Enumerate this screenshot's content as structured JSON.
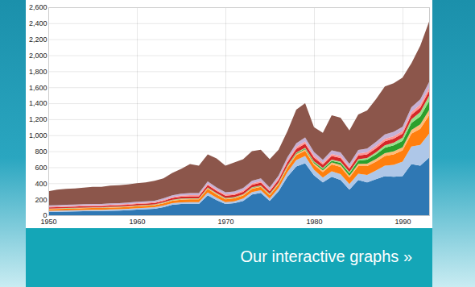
{
  "chart_data": {
    "type": "area",
    "stacked": true,
    "grid": true,
    "x": [
      1950,
      1951,
      1952,
      1953,
      1954,
      1955,
      1956,
      1957,
      1958,
      1959,
      1960,
      1961,
      1962,
      1963,
      1964,
      1965,
      1966,
      1967,
      1968,
      1969,
      1970,
      1971,
      1972,
      1973,
      1974,
      1975,
      1976,
      1977,
      1978,
      1979,
      1980,
      1981,
      1982,
      1983,
      1984,
      1985,
      1986,
      1987,
      1988,
      1989,
      1990,
      1991,
      1992,
      1993
    ],
    "xlim": [
      1950,
      1993
    ],
    "xticks": [
      1950,
      1960,
      1970,
      1980,
      1990
    ],
    "ylim": [
      0,
      2600
    ],
    "yticks": [
      0,
      200,
      400,
      600,
      800,
      {
        "value": 1000,
        "label": "1,000"
      },
      {
        "value": 1200,
        "label": "1,200"
      },
      {
        "value": 1400,
        "label": "1,400"
      },
      {
        "value": 1600,
        "label": "1,600"
      },
      {
        "value": 1800,
        "label": "1,800"
      },
      {
        "value": 2000,
        "label": "2,000"
      },
      {
        "value": 2200,
        "label": "2,200"
      },
      {
        "value": 2400,
        "label": "2,400"
      },
      {
        "value": 2600,
        "label": "2,600"
      }
    ],
    "series": [
      {
        "color": "#2f78b4",
        "values": [
          40,
          42,
          45,
          48,
          50,
          52,
          52,
          55,
          58,
          62,
          70,
          75,
          80,
          100,
          130,
          140,
          140,
          140,
          250,
          190,
          140,
          150,
          180,
          260,
          280,
          180,
          300,
          480,
          610,
          650,
          500,
          410,
          480,
          440,
          320,
          440,
          410,
          450,
          490,
          480,
          490,
          640,
          620,
          720
        ]
      },
      {
        "color": "#aec7e8",
        "values": [
          15,
          15,
          15,
          15,
          16,
          16,
          16,
          17,
          17,
          18,
          18,
          18,
          20,
          20,
          22,
          22,
          24,
          24,
          35,
          30,
          25,
          25,
          28,
          30,
          32,
          30,
          40,
          60,
          80,
          90,
          70,
          60,
          70,
          75,
          70,
          80,
          95,
          110,
          130,
          150,
          180,
          220,
          260,
          300
        ]
      },
      {
        "color": "#ff7f0e",
        "values": [
          20,
          20,
          21,
          21,
          22,
          22,
          22,
          23,
          23,
          24,
          25,
          25,
          26,
          28,
          30,
          32,
          34,
          34,
          45,
          40,
          35,
          36,
          38,
          40,
          42,
          40,
          45,
          55,
          60,
          65,
          60,
          70,
          85,
          90,
          80,
          95,
          110,
          110,
          120,
          130,
          140,
          160,
          200,
          230
        ]
      },
      {
        "color": "#ffbb78",
        "values": [
          5,
          5,
          5,
          5,
          5,
          5,
          5,
          6,
          6,
          6,
          6,
          6,
          6,
          7,
          7,
          8,
          8,
          8,
          10,
          9,
          9,
          9,
          10,
          10,
          11,
          10,
          12,
          14,
          16,
          18,
          20,
          22,
          24,
          25,
          25,
          28,
          30,
          32,
          35,
          38,
          40,
          45,
          55,
          65
        ]
      },
      {
        "color": "#2ca02c",
        "values": [
          2,
          2,
          2,
          2,
          2,
          2,
          2,
          2,
          2,
          2,
          2,
          2,
          2,
          3,
          3,
          3,
          3,
          3,
          4,
          4,
          4,
          4,
          4,
          5,
          5,
          5,
          6,
          8,
          10,
          12,
          15,
          18,
          22,
          25,
          30,
          40,
          50,
          60,
          70,
          75,
          80,
          90,
          100,
          110
        ]
      },
      {
        "color": "#98df8a",
        "values": [
          2,
          2,
          2,
          2,
          2,
          2,
          2,
          2,
          2,
          2,
          2,
          2,
          2,
          2,
          2,
          3,
          3,
          3,
          3,
          3,
          3,
          3,
          3,
          4,
          4,
          4,
          5,
          6,
          8,
          10,
          10,
          12,
          14,
          15,
          16,
          18,
          20,
          25,
          30,
          35,
          40,
          45,
          55,
          70
        ]
      },
      {
        "color": "#d62728",
        "values": [
          15,
          15,
          15,
          15,
          16,
          16,
          16,
          17,
          17,
          17,
          18,
          18,
          18,
          20,
          22,
          24,
          25,
          25,
          30,
          28,
          28,
          28,
          30,
          32,
          34,
          32,
          35,
          40,
          45,
          50,
          45,
          40,
          45,
          45,
          40,
          45,
          45,
          50,
          50,
          50,
          50,
          55,
          55,
          60
        ]
      },
      {
        "color": "#ff9896",
        "values": [
          10,
          10,
          10,
          10,
          10,
          10,
          10,
          10,
          10,
          10,
          10,
          10,
          10,
          12,
          12,
          14,
          14,
          14,
          16,
          15,
          15,
          15,
          16,
          18,
          18,
          16,
          18,
          22,
          25,
          28,
          25,
          22,
          25,
          25,
          22,
          25,
          28,
          30,
          30,
          30,
          32,
          35,
          38,
          40
        ]
      },
      {
        "color": "#c5b0d5",
        "values": [
          15,
          15,
          15,
          15,
          16,
          16,
          16,
          17,
          17,
          17,
          18,
          18,
          18,
          20,
          22,
          24,
          26,
          26,
          30,
          28,
          28,
          28,
          30,
          32,
          34,
          30,
          35,
          40,
          45,
          50,
          45,
          40,
          45,
          45,
          40,
          45,
          45,
          50,
          55,
          55,
          55,
          60,
          65,
          70
        ]
      },
      {
        "color": "#8c564b",
        "values": [
          176,
          194,
          200,
          202,
          206,
          214,
          214,
          221,
          223,
          227,
          231,
          236,
          248,
          248,
          280,
          310,
          363,
          343,
          337,
          363,
          333,
          362,
          361,
          369,
          360,
          353,
          324,
          325,
          421,
          427,
          310,
          336,
          440,
          435,
          417,
          444,
          477,
          533,
          600,
          607,
          613,
          550,
          672,
          755
        ]
      }
    ]
  },
  "button": {
    "text": "Our interactive graphs »"
  }
}
